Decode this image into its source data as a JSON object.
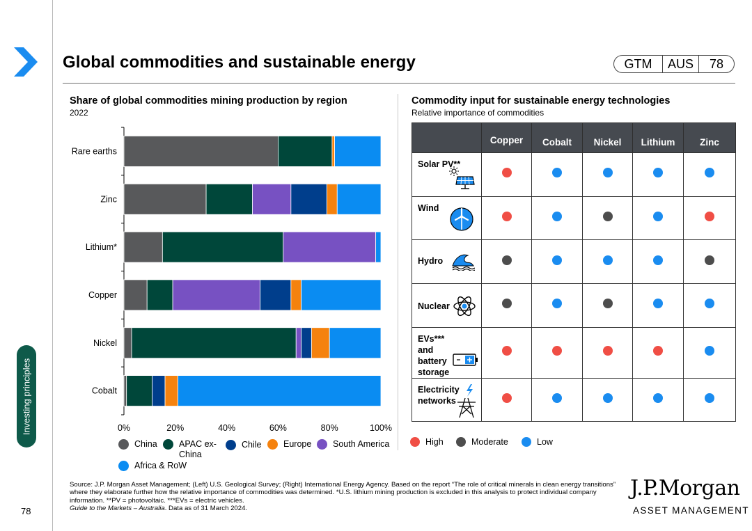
{
  "page": {
    "title": "Global commodities and sustainable energy",
    "badge": [
      "GTM",
      "AUS",
      "78"
    ],
    "side_tab": "Investing principles",
    "page_number": "78"
  },
  "left_chart": {
    "title": "Share of global commodities mining production by region",
    "subtitle": "2022"
  },
  "right_chart": {
    "title": "Commodity input for sustainable energy technologies",
    "subtitle": "Relative importance of commodities",
    "columns": [
      "Copper",
      "Cobalt",
      "Nickel",
      "Lithium",
      "Zinc"
    ],
    "rows": [
      {
        "label": "Solar PV**",
        "icon": "solar-panel-icon",
        "values": [
          "High",
          "Low",
          "Low",
          "Low",
          "Low"
        ]
      },
      {
        "label": "Wind",
        "icon": "wind-turbine-icon",
        "values": [
          "High",
          "Low",
          "Moderate",
          "Low",
          "High"
        ]
      },
      {
        "label": "Hydro",
        "icon": "wave-icon",
        "values": [
          "Moderate",
          "Low",
          "Low",
          "Low",
          "Moderate"
        ]
      },
      {
        "label": "Nuclear",
        "icon": "atom-icon",
        "values": [
          "Moderate",
          "Low",
          "Moderate",
          "Low",
          "Low"
        ]
      },
      {
        "label": "EVs*** and battery storage",
        "icon": "battery-icon",
        "values": [
          "High",
          "High",
          "High",
          "High",
          "Low"
        ]
      },
      {
        "label": "Electricity networks",
        "icon": "power-tower-icon",
        "values": [
          "High",
          "Low",
          "Low",
          "Low",
          "Low"
        ]
      }
    ],
    "levels": [
      "High",
      "Moderate",
      "Low"
    ],
    "level_colors": {
      "High": "#f04e45",
      "Moderate": "#4d4d4d",
      "Low": "#1a8cf0"
    }
  },
  "chart_data": {
    "type": "bar",
    "orientation": "horizontal",
    "stacked": true,
    "title": "Share of global commodities mining production by region",
    "subtitle": "2022",
    "categories": [
      "Rare earths",
      "Zinc",
      "Lithium*",
      "Copper",
      "Nickel",
      "Cobalt"
    ],
    "xlim": [
      0,
      100
    ],
    "xticks": [
      "0%",
      "20%",
      "40%",
      "60%",
      "80%",
      "100%"
    ],
    "series": [
      {
        "name": "China",
        "color": "#58595b",
        "values": [
          60,
          32,
          15,
          9,
          3,
          1
        ]
      },
      {
        "name": "APAC ex-China",
        "color": "#00473a",
        "values": [
          21,
          18,
          47,
          10,
          64,
          10
        ]
      },
      {
        "name": "South America",
        "color": "#7751c2",
        "values": [
          0,
          15,
          36,
          34,
          2,
          0
        ]
      },
      {
        "name": "Chile",
        "color": "#003e8c",
        "values": [
          0,
          14,
          0,
          12,
          4,
          5
        ]
      },
      {
        "name": "Europe",
        "color": "#f5820e",
        "values": [
          1,
          4,
          0,
          4,
          7,
          5
        ]
      },
      {
        "name": "Africa & RoW",
        "color": "#0a8cf2",
        "values": [
          18,
          17,
          2,
          31,
          20,
          79
        ]
      }
    ],
    "legend": [
      {
        "name": "China",
        "color": "#58595b"
      },
      {
        "name": "APAC ex-China",
        "color": "#00473a"
      },
      {
        "name": "Chile",
        "color": "#003e8c"
      },
      {
        "name": "Europe",
        "color": "#f5820e"
      },
      {
        "name": "South America",
        "color": "#7751c2"
      },
      {
        "name": "Africa & RoW",
        "color": "#0a8cf2"
      }
    ]
  },
  "footer": {
    "source": "Source: J.P. Morgan Asset Management; (Left) U.S. Geological Survey; (Right) International Energy Agency. Based on the report “The role of critical minerals in clean energy transitions” where they elaborate further how the relative importance of commodities was determined. *U.S. lithium mining production is excluded in this analysis to protect individual company information. **PV = photovoltaic. ***EVs = electric vehicles.",
    "guide": "Guide to the Markets – Australia",
    "data_as_of": ". Data as of 31 March 2024.",
    "brand": "J.P.Morgan",
    "brand_sub": "ASSET MANAGEMENT"
  }
}
